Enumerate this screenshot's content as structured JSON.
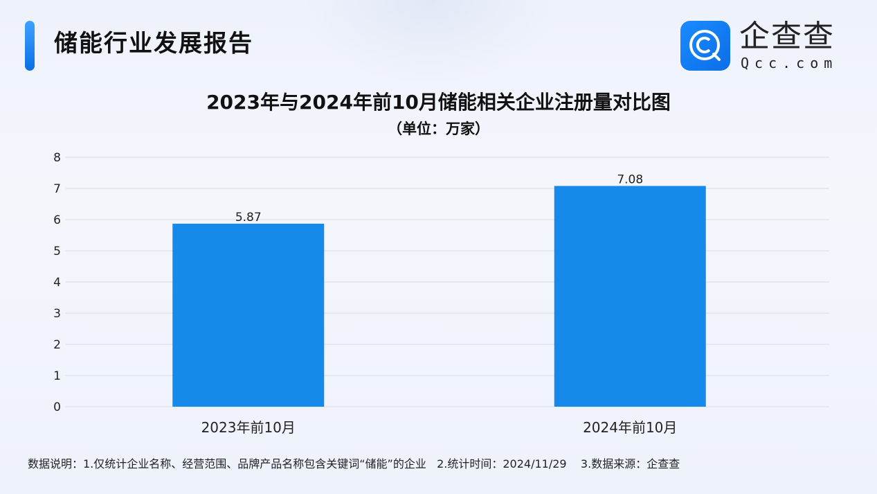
{
  "header": {
    "title": "储能行业发展报告"
  },
  "logo": {
    "cn": "企查查",
    "en": "Qcc.com",
    "icon": "qcc-logo-icon"
  },
  "colors": {
    "bar": "#168aea",
    "accent": "#0a6fe6",
    "grid": "#d9dce3"
  },
  "chart_data": {
    "type": "bar",
    "title": "2023年与2024年前10月储能相关企业注册量对比图",
    "subtitle": "（单位：万家）",
    "categories": [
      "2023年前10月",
      "2024年前10月"
    ],
    "values": [
      5.87,
      7.08
    ],
    "data_labels": [
      "5.87",
      "7.08"
    ],
    "ylim": [
      0,
      8
    ],
    "yticks": [
      "0",
      "1",
      "2",
      "3",
      "4",
      "5",
      "6",
      "7",
      "8"
    ],
    "grid": true,
    "legend": "none"
  },
  "footnote": "数据说明：1.仅统计企业名称、经营范围、品牌产品名称包含关键词“储能”的企业   2.统计时间：2024/11/29    3.数据来源：企查查"
}
